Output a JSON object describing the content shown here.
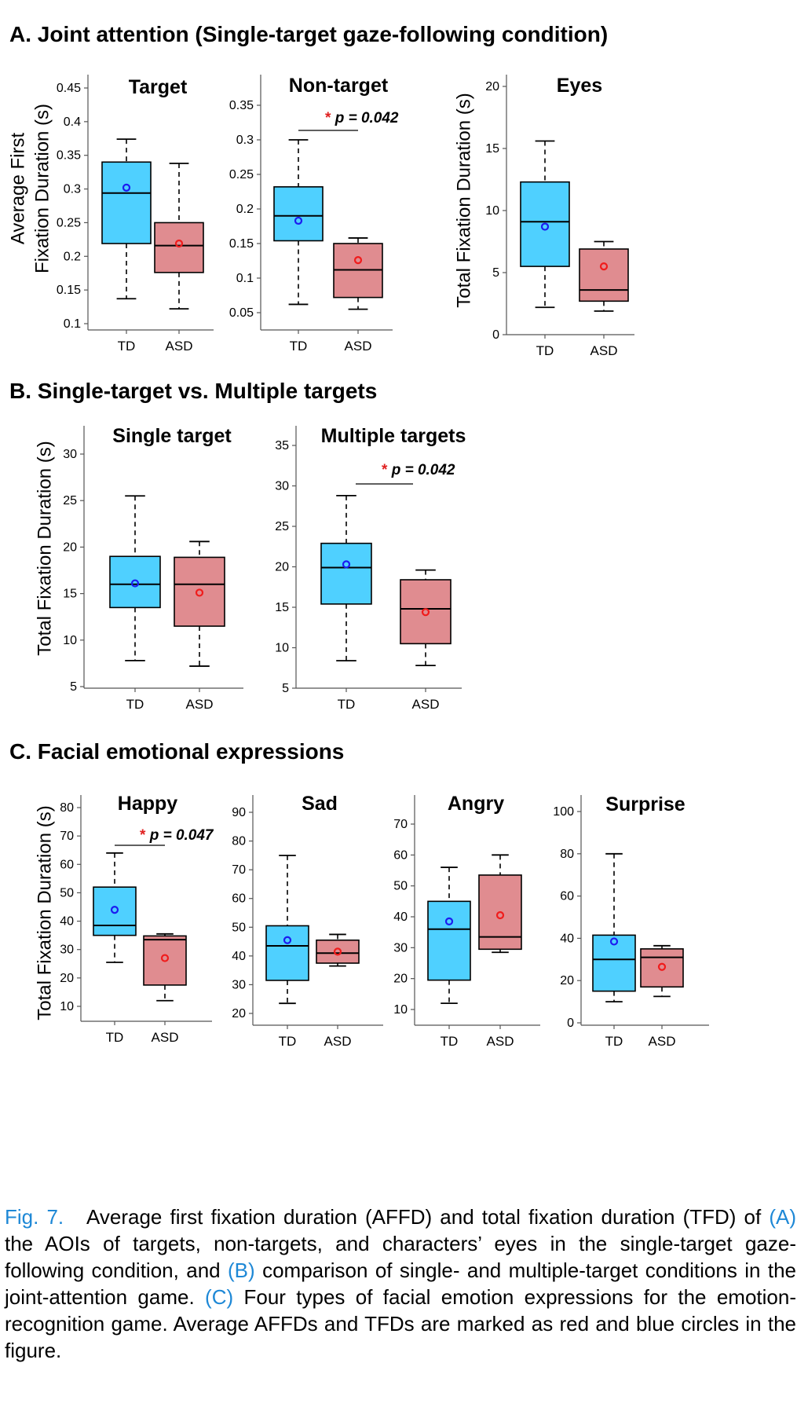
{
  "sections": [
    {
      "title": "A. Joint attention (Single-target gaze-following condition)",
      "panels": [
        {
          "title": "Target",
          "ylabel_lines": [
            "Average First",
            "Fixation Duration (s)"
          ],
          "ylim": [
            0.1,
            0.45
          ],
          "yticks": [
            "0.1",
            "0.15",
            "0.2",
            "0.25",
            "0.3",
            "0.35",
            "0.4",
            "0.45"
          ],
          "categories": [
            "TD",
            "ASD"
          ],
          "sig": null
        },
        {
          "title": "Non-target",
          "ylabel_lines": [],
          "ylim": [
            0.05,
            0.35
          ],
          "yticks": [
            "0.05",
            "0.1",
            "0.15",
            "0.2",
            "0.25",
            "0.3",
            "0.35"
          ],
          "categories": [
            "TD",
            "ASD"
          ],
          "sig": {
            "star": "*",
            "text": "p = 0.042"
          }
        },
        {
          "title": "Eyes",
          "ylabel_lines": [
            "Total Fixation Duration (s)"
          ],
          "ylim": [
            0,
            20
          ],
          "yticks": [
            "0",
            "5",
            "10",
            "15",
            "20"
          ],
          "categories": [
            "TD",
            "ASD"
          ],
          "sig": null
        }
      ]
    },
    {
      "title": "B. Single-target vs. Multiple targets",
      "panels": [
        {
          "title": "Single target",
          "ylabel_lines": [
            "Total Fixation Duration (s)"
          ],
          "ylim": [
            5,
            30
          ],
          "yticks": [
            "5",
            "10",
            "15",
            "20",
            "25",
            "30"
          ],
          "categories": [
            "TD",
            "ASD"
          ],
          "sig": null
        },
        {
          "title": "Multiple targets",
          "ylabel_lines": [],
          "ylim": [
            5,
            35
          ],
          "yticks": [
            "5",
            "10",
            "15",
            "20",
            "25",
            "30",
            "35"
          ],
          "categories": [
            "TD",
            "ASD"
          ],
          "sig": {
            "star": "*",
            "text": "p = 0.042"
          }
        }
      ]
    },
    {
      "title": "C. Facial emotional expressions",
      "panels": [
        {
          "title": "Happy",
          "ylabel_lines": [
            "Total Fixation Duration (s)"
          ],
          "ylim": [
            10,
            80
          ],
          "yticks": [
            "10",
            "20",
            "30",
            "40",
            "50",
            "60",
            "70",
            "80"
          ],
          "categories": [
            "TD",
            "ASD"
          ],
          "sig": {
            "star": "*",
            "text": "p = 0.047"
          }
        },
        {
          "title": "Sad",
          "ylabel_lines": [],
          "ylim": [
            20,
            90
          ],
          "yticks": [
            "20",
            "30",
            "40",
            "50",
            "60",
            "70",
            "80",
            "90"
          ],
          "categories": [
            "TD",
            "ASD"
          ],
          "sig": null
        },
        {
          "title": "Angry",
          "ylabel_lines": [],
          "ylim": [
            10,
            70
          ],
          "yticks": [
            "10",
            "20",
            "30",
            "40",
            "50",
            "60",
            "70"
          ],
          "categories": [
            "TD",
            "ASD"
          ],
          "sig": null
        },
        {
          "title": "Surprise",
          "ylabel_lines": [],
          "ylim": [
            0,
            100
          ],
          "yticks": [
            "0",
            "20",
            "40",
            "60",
            "80",
            "100"
          ],
          "categories": [
            "TD",
            "ASD"
          ],
          "sig": null
        }
      ]
    }
  ],
  "chart_data": [
    {
      "type": "box",
      "title": "Target",
      "ylabel": "Average First Fixation Duration (s)",
      "ylim": [
        0.1,
        0.45
      ],
      "categories": [
        "TD",
        "ASD"
      ],
      "series": [
        {
          "whisker_low": 0.137,
          "q1": 0.219,
          "median": 0.294,
          "q3": 0.34,
          "whisker_high": 0.374,
          "mean": 0.302
        },
        {
          "whisker_low": 0.122,
          "q1": 0.176,
          "median": 0.216,
          "q3": 0.25,
          "whisker_high": 0.338,
          "mean": 0.219
        }
      ]
    },
    {
      "type": "box",
      "title": "Non-target",
      "ylabel": "",
      "ylim": [
        0.05,
        0.35
      ],
      "categories": [
        "TD",
        "ASD"
      ],
      "series": [
        {
          "whisker_low": 0.062,
          "q1": 0.154,
          "median": 0.19,
          "q3": 0.232,
          "whisker_high": 0.3,
          "mean": 0.183
        },
        {
          "whisker_low": 0.055,
          "q1": 0.072,
          "median": 0.112,
          "q3": 0.15,
          "whisker_high": 0.158,
          "mean": 0.126
        }
      ]
    },
    {
      "type": "box",
      "title": "Eyes",
      "ylabel": "Total Fixation Duration (s)",
      "ylim": [
        0,
        20
      ],
      "categories": [
        "TD",
        "ASD"
      ],
      "series": [
        {
          "whisker_low": 2.2,
          "q1": 5.5,
          "median": 9.1,
          "q3": 12.3,
          "whisker_high": 15.6,
          "mean": 8.7
        },
        {
          "whisker_low": 1.9,
          "q1": 2.7,
          "median": 3.6,
          "q3": 6.9,
          "whisker_high": 7.5,
          "mean": 5.5
        }
      ]
    },
    {
      "type": "box",
      "title": "Single target",
      "ylabel": "Total Fixation Duration (s)",
      "ylim": [
        5,
        30
      ],
      "categories": [
        "TD",
        "ASD"
      ],
      "series": [
        {
          "whisker_low": 7.8,
          "q1": 13.5,
          "median": 16.0,
          "q3": 19.0,
          "whisker_high": 25.5,
          "mean": 16.1
        },
        {
          "whisker_low": 7.2,
          "q1": 11.5,
          "median": 16.0,
          "q3": 18.9,
          "whisker_high": 20.6,
          "mean": 15.1
        }
      ]
    },
    {
      "type": "box",
      "title": "Multiple targets",
      "ylabel": "",
      "ylim": [
        5,
        35
      ],
      "categories": [
        "TD",
        "ASD"
      ],
      "series": [
        {
          "whisker_low": 8.4,
          "q1": 15.4,
          "median": 19.9,
          "q3": 22.9,
          "whisker_high": 28.8,
          "mean": 20.3
        },
        {
          "whisker_low": 7.8,
          "q1": 10.5,
          "median": 14.8,
          "q3": 18.4,
          "whisker_high": 19.6,
          "mean": 14.4
        }
      ]
    },
    {
      "type": "box",
      "title": "Happy",
      "ylabel": "Total Fixation Duration (s)",
      "ylim": [
        10,
        80
      ],
      "categories": [
        "TD",
        "ASD"
      ],
      "series": [
        {
          "whisker_low": 25.5,
          "q1": 35.0,
          "median": 38.5,
          "q3": 52.0,
          "whisker_high": 64.0,
          "mean": 44.0
        },
        {
          "whisker_low": 12.0,
          "q1": 17.5,
          "median": 33.5,
          "q3": 34.8,
          "whisker_high": 35.5,
          "mean": 27.0
        }
      ]
    },
    {
      "type": "box",
      "title": "Sad",
      "ylabel": "",
      "ylim": [
        20,
        90
      ],
      "categories": [
        "TD",
        "ASD"
      ],
      "series": [
        {
          "whisker_low": 23.5,
          "q1": 31.5,
          "median": 43.5,
          "q3": 50.5,
          "whisker_high": 75.0,
          "mean": 45.5
        },
        {
          "whisker_low": 36.5,
          "q1": 37.5,
          "median": 41.0,
          "q3": 45.5,
          "whisker_high": 47.5,
          "mean": 41.5
        }
      ]
    },
    {
      "type": "box",
      "title": "Angry",
      "ylabel": "",
      "ylim": [
        10,
        70
      ],
      "categories": [
        "TD",
        "ASD"
      ],
      "series": [
        {
          "whisker_low": 12.0,
          "q1": 19.5,
          "median": 36.0,
          "q3": 45.0,
          "whisker_high": 56.0,
          "mean": 38.5
        },
        {
          "whisker_low": 28.5,
          "q1": 29.5,
          "median": 33.5,
          "q3": 53.5,
          "whisker_high": 60.0,
          "mean": 40.5
        }
      ]
    },
    {
      "type": "box",
      "title": "Surprise",
      "ylabel": "",
      "ylim": [
        0,
        100
      ],
      "categories": [
        "TD",
        "ASD"
      ],
      "series": [
        {
          "whisker_low": 10.0,
          "q1": 15.0,
          "median": 30.0,
          "q3": 41.5,
          "whisker_high": 80.0,
          "mean": 38.5
        },
        {
          "whisker_low": 12.5,
          "q1": 17.0,
          "median": 31.0,
          "q3": 35.0,
          "whisker_high": 36.5,
          "mean": 26.5
        }
      ]
    }
  ],
  "colors": {
    "td_fill": "#4fd0ff",
    "asd_fill": "#e08c90",
    "td_mean": "#1c1cf0",
    "asd_mean": "#f01c1c",
    "star": "#e02020",
    "link": "#1e88d6"
  },
  "caption": {
    "label": "Fig. 7.",
    "t1": "Average first fixation duration (AFFD) and total fixation duration (TFD) of ",
    "refA": "(A)",
    "t2": " the AOIs of targets, non-targets, and characters’ eyes in the single-target gaze-following condition, and ",
    "refB": "(B)",
    "t3": " comparison of single- and multiple-target conditions in the joint-attention game. ",
    "refC": "(C)",
    "t4": " Four types of facial emotion expressions for the emotion-recognition game. Average AFFDs and TFDs are marked as red and blue circles in the figure."
  }
}
